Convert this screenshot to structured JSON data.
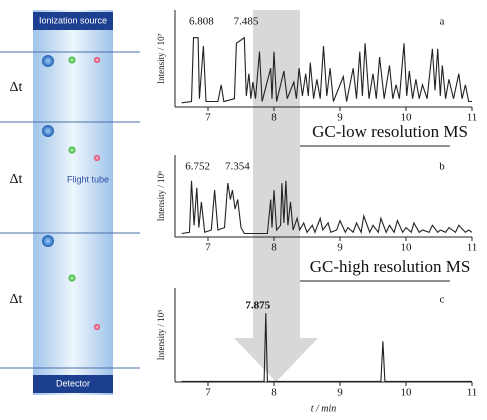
{
  "diagram": {
    "top_label": "Ionization source",
    "bottom_label": "Detector",
    "tube_label": "Flight tube",
    "interval_labels": [
      "Δt",
      "Δt",
      "Δt"
    ]
  },
  "chart_data": [
    {
      "type": "line",
      "label": "a",
      "caption": "GC-low resolution MS",
      "ylabel": "Intensity / 10⁷",
      "color": "#222",
      "xlim": [
        6.5,
        11
      ],
      "xticks": [
        7,
        8,
        9,
        10,
        11
      ],
      "ylim": [
        0,
        3.5
      ],
      "peak_labels": [
        6.808,
        7.485
      ],
      "x": [
        6.6,
        6.75,
        6.78,
        6.85,
        6.87,
        6.93,
        6.97,
        7.15,
        7.2,
        7.24,
        7.4,
        7.43,
        7.55,
        7.58,
        7.62,
        7.65,
        7.68,
        7.72,
        7.78,
        7.82,
        7.95,
        7.97,
        8.0,
        8.04,
        8.15,
        8.2,
        8.3,
        8.34,
        8.38,
        8.43,
        8.48,
        8.52,
        8.55,
        8.6,
        8.65,
        8.7,
        8.75,
        8.8,
        8.85,
        8.9,
        9.05,
        9.1,
        9.2,
        9.25,
        9.3,
        9.34,
        9.38,
        9.44,
        9.5,
        9.55,
        9.6,
        9.67,
        9.75,
        9.8,
        9.85,
        9.9,
        9.97,
        10.01,
        10.05,
        10.1,
        10.15,
        10.2,
        10.25,
        10.32,
        10.4,
        10.44,
        10.48,
        10.52,
        10.55,
        10.6,
        10.65,
        10.72,
        10.8,
        10.85,
        10.9,
        10.95,
        11.0
      ],
      "values": [
        0.15,
        0.2,
        2.5,
        2.5,
        0.3,
        2.2,
        0.2,
        0.2,
        0.8,
        0.2,
        0.3,
        2.3,
        2.5,
        0.4,
        1.2,
        0.3,
        0.9,
        0.3,
        2.0,
        0.2,
        1.4,
        0.3,
        2.0,
        0.2,
        1.3,
        0.3,
        0.9,
        0.3,
        1.4,
        0.4,
        1.2,
        0.4,
        1.6,
        0.3,
        1.0,
        0.3,
        2.2,
        0.4,
        1.4,
        0.2,
        1.1,
        0.2,
        1.4,
        0.3,
        2.0,
        0.4,
        2.3,
        0.3,
        1.2,
        0.3,
        1.8,
        0.3,
        1.5,
        0.3,
        0.8,
        0.3,
        2.3,
        0.4,
        1.3,
        0.3,
        1.0,
        0.3,
        0.8,
        0.3,
        2.1,
        0.6,
        2.1,
        0.4,
        1.5,
        0.3,
        1.0,
        0.3,
        1.2,
        0.3,
        0.8,
        0.2,
        0.2
      ]
    },
    {
      "type": "line",
      "label": "b",
      "caption": "GC-high resolution MS",
      "ylabel": "Intensity / 10⁶",
      "color": "#222",
      "xlim": [
        6.5,
        11
      ],
      "xticks": [
        7,
        8,
        9,
        10,
        11
      ],
      "ylim": [
        0,
        3.5
      ],
      "peak_labels": [
        6.752,
        7.354
      ],
      "x": [
        6.6,
        6.72,
        6.75,
        6.79,
        6.83,
        6.86,
        6.9,
        6.95,
        7.05,
        7.1,
        7.15,
        7.25,
        7.3,
        7.34,
        7.37,
        7.41,
        7.45,
        7.5,
        7.55,
        7.9,
        7.95,
        7.97,
        8.0,
        8.04,
        8.1,
        8.12,
        8.15,
        8.18,
        8.21,
        8.25,
        8.29,
        8.35,
        8.39,
        8.45,
        8.5,
        8.58,
        8.62,
        8.7,
        8.74,
        8.82,
        8.86,
        8.95,
        9.0,
        9.08,
        9.12,
        9.2,
        9.25,
        9.32,
        9.36,
        9.45,
        9.5,
        9.58,
        9.62,
        9.7,
        9.75,
        9.82,
        9.87,
        9.95,
        10.0,
        10.08,
        10.12,
        10.2,
        10.25,
        10.35,
        10.4,
        10.48,
        10.52,
        10.6,
        10.65,
        10.75,
        10.8,
        10.9,
        10.95,
        11.0
      ],
      "values": [
        0.15,
        0.2,
        2.4,
        0.5,
        2.1,
        0.4,
        1.5,
        0.2,
        0.3,
        2.0,
        0.3,
        0.4,
        2.3,
        1.6,
        2.0,
        1.2,
        1.6,
        0.4,
        0.15,
        0.15,
        1.6,
        0.4,
        2.0,
        0.3,
        0.5,
        2.3,
        0.6,
        2.4,
        0.5,
        1.5,
        0.3,
        0.8,
        0.3,
        0.6,
        0.2,
        0.5,
        0.2,
        0.8,
        0.3,
        0.6,
        0.2,
        0.3,
        0.7,
        0.2,
        0.4,
        0.2,
        0.6,
        0.2,
        0.9,
        0.2,
        0.5,
        0.2,
        0.8,
        0.2,
        0.5,
        0.2,
        0.7,
        0.2,
        0.4,
        0.2,
        0.6,
        0.2,
        0.3,
        0.2,
        0.5,
        0.2,
        0.3,
        0.2,
        0.4,
        0.2,
        0.5,
        0.2,
        0.3,
        0.2
      ]
    },
    {
      "type": "line",
      "label": "c",
      "ylabel": "Intensity / 10⁵",
      "xlabel": "t / min",
      "color": "#222",
      "xlim": [
        6.5,
        11
      ],
      "xticks": [
        7,
        8,
        9,
        10,
        11
      ],
      "ylim": [
        0,
        3
      ],
      "peak_labels": [
        7.875
      ],
      "x": [
        6.6,
        7.85,
        7.875,
        7.9,
        9.62,
        9.65,
        9.68,
        11.0
      ],
      "values": [
        0.02,
        0.02,
        2.2,
        0.02,
        0.02,
        1.3,
        0.02,
        0.02
      ]
    }
  ]
}
